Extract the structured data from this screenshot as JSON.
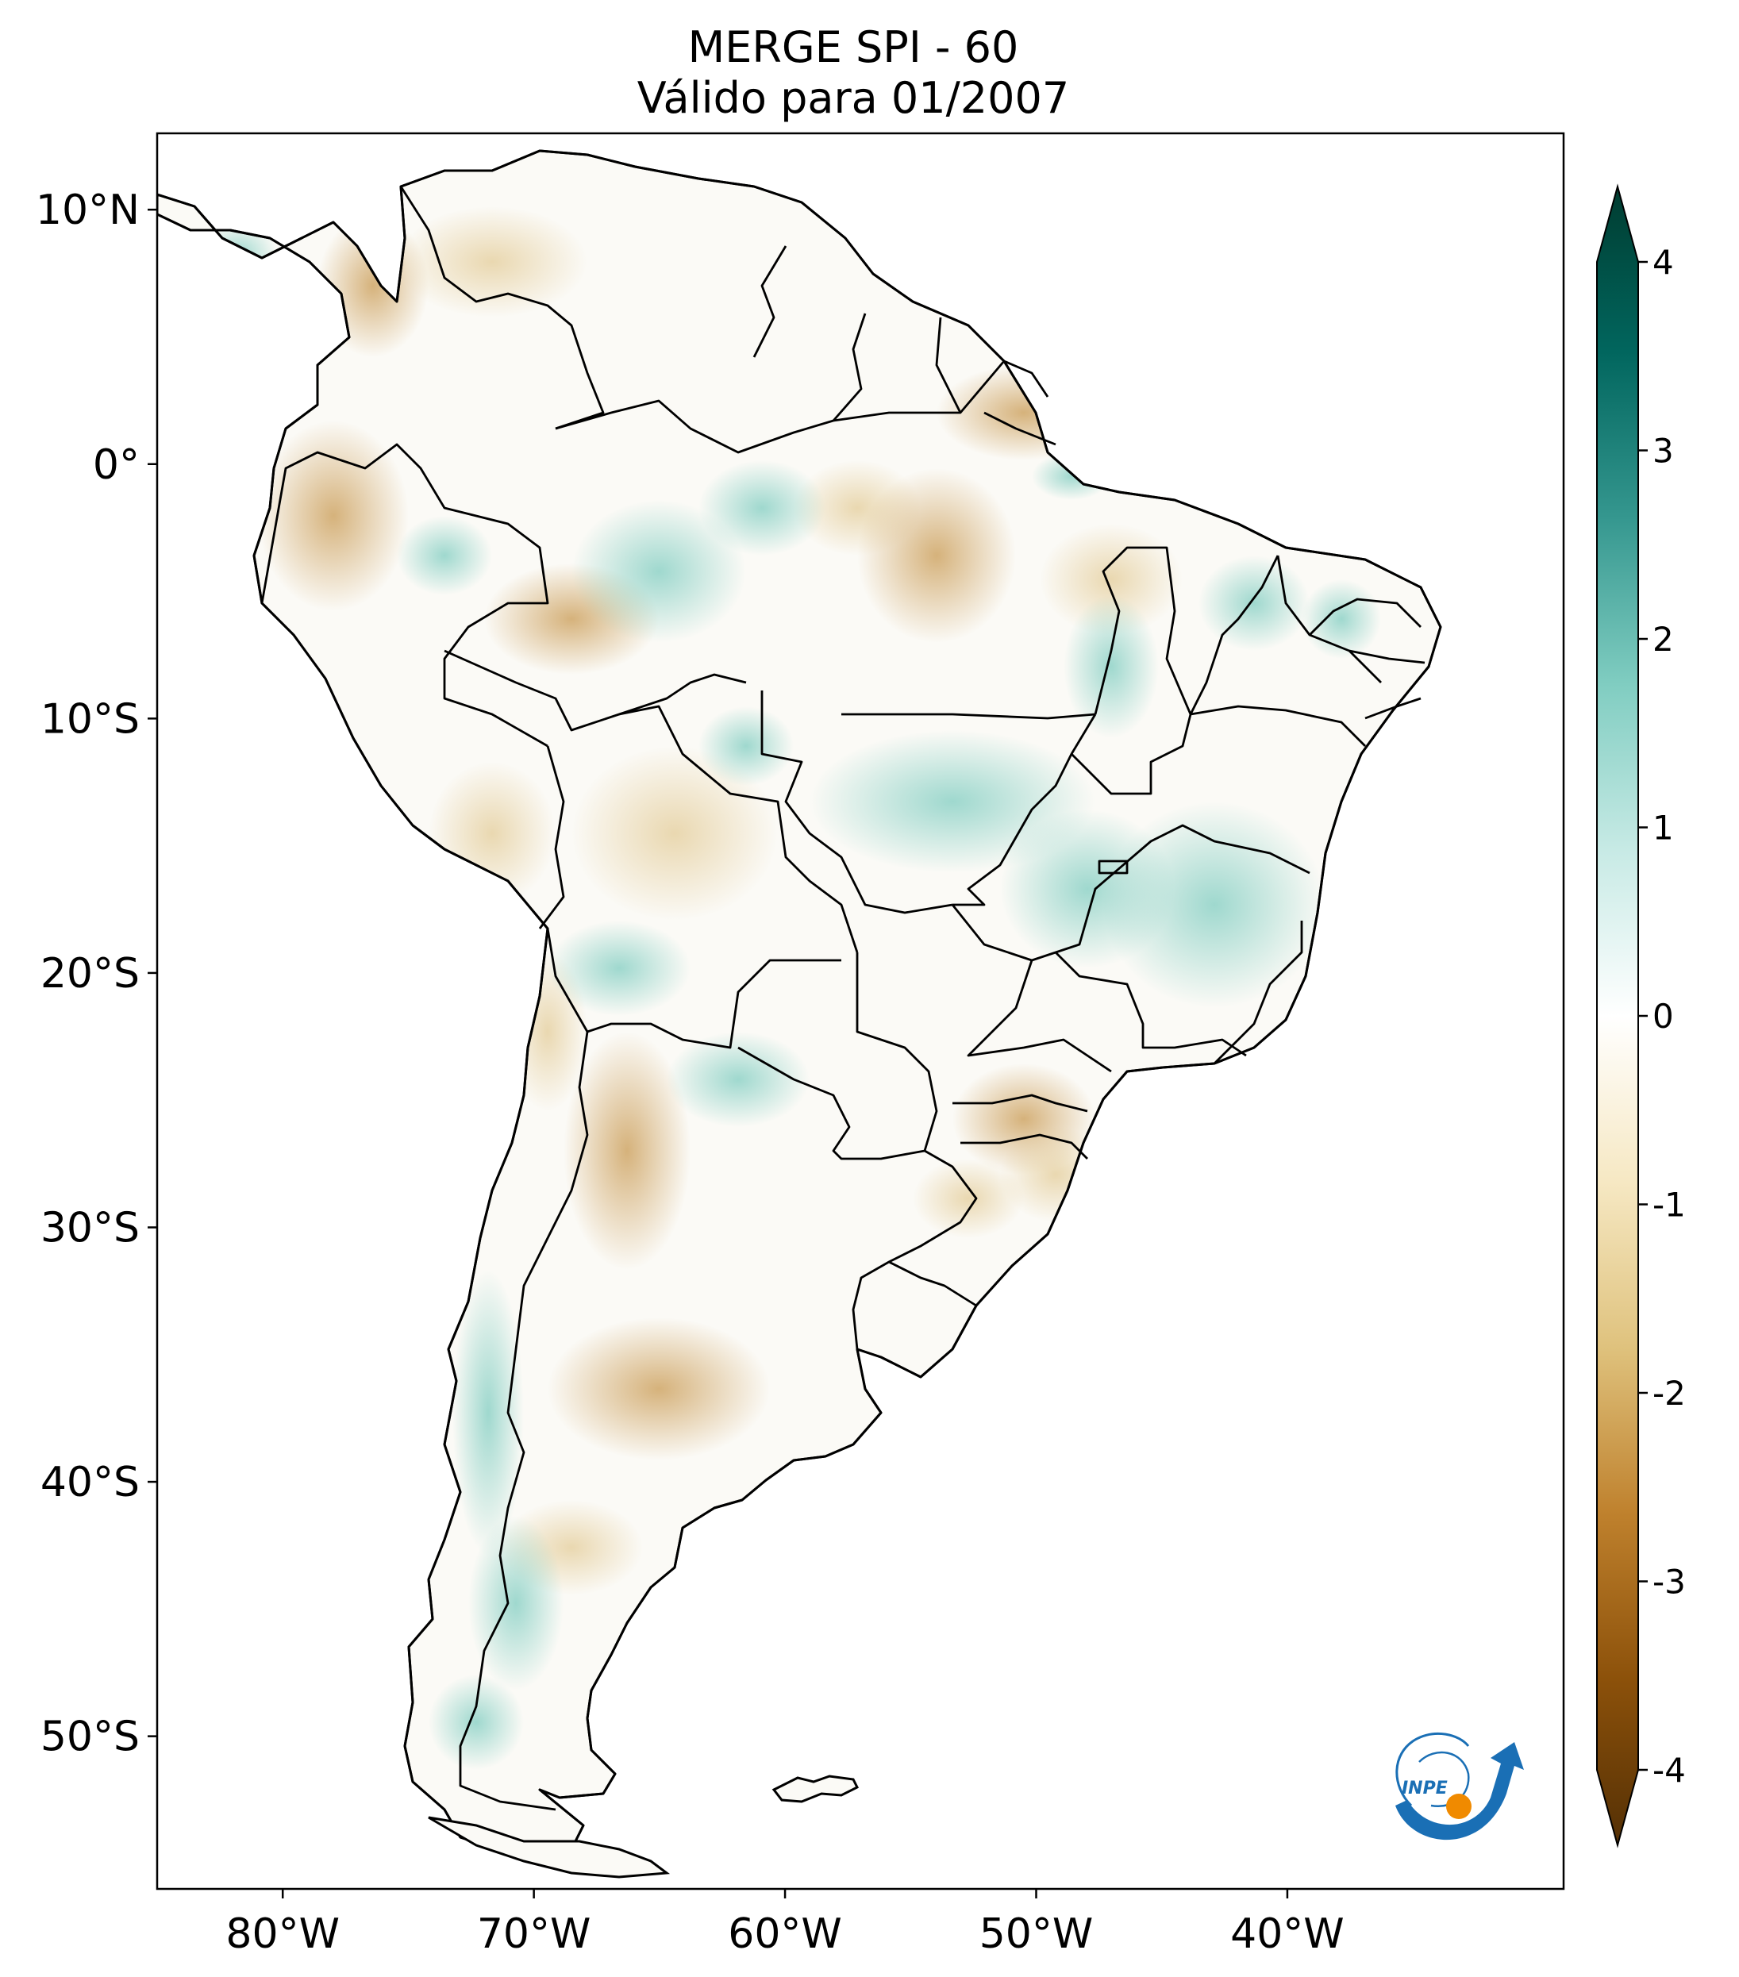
{
  "title": {
    "line1": "MERGE   SPI - 60",
    "line2": "Válido para 01/2007"
  },
  "map": {
    "lon_range": [
      -85,
      -29
    ],
    "lat_range": [
      -56,
      13
    ],
    "lon_ticks": [
      {
        "value": -80,
        "label": "80°W"
      },
      {
        "value": -70,
        "label": "70°W"
      },
      {
        "value": -60,
        "label": "60°W"
      },
      {
        "value": -50,
        "label": "50°W"
      },
      {
        "value": -40,
        "label": "40°W"
      }
    ],
    "lat_ticks": [
      {
        "value": 10,
        "label": "10°N"
      },
      {
        "value": 0,
        "label": "0°"
      },
      {
        "value": -10,
        "label": "10°S"
      },
      {
        "value": -20,
        "label": "20°S"
      },
      {
        "value": -30,
        "label": "30°S"
      },
      {
        "value": -40,
        "label": "40°S"
      },
      {
        "value": -50,
        "label": "50°S"
      }
    ]
  },
  "colorbar": {
    "min": -4,
    "max": 4,
    "ticks": [
      {
        "value": 4,
        "label": "4"
      },
      {
        "value": 3,
        "label": "3"
      },
      {
        "value": 2,
        "label": "2"
      },
      {
        "value": 1,
        "label": "1"
      },
      {
        "value": 0,
        "label": "0"
      },
      {
        "value": -1,
        "label": "-1"
      },
      {
        "value": -2,
        "label": "-2"
      },
      {
        "value": -3,
        "label": "-3"
      },
      {
        "value": -4,
        "label": "-4"
      }
    ],
    "colors": [
      "#543005",
      "#8c510a",
      "#bf812d",
      "#dfc27d",
      "#f6e8c3",
      "#ffffff",
      "#c7eae5",
      "#80cdc1",
      "#35978f",
      "#01665e",
      "#003c30"
    ]
  },
  "logo": {
    "text": "INPE",
    "colors": {
      "blue": "#1a6fb5",
      "orange": "#f08a00"
    }
  }
}
